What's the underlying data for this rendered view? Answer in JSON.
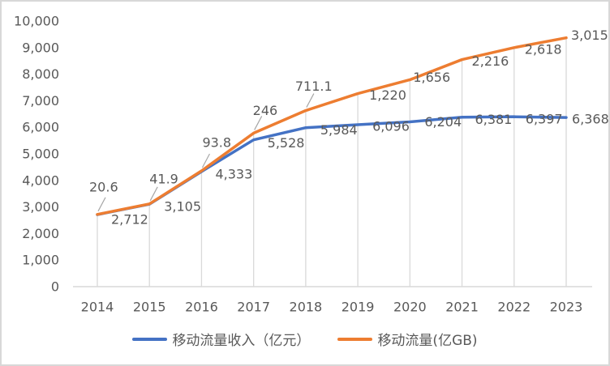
{
  "chart_data": {
    "type": "line",
    "title": "",
    "categories": [
      "2014",
      "2015",
      "2016",
      "2017",
      "2018",
      "2019",
      "2020",
      "2021",
      "2022",
      "2023"
    ],
    "series": [
      {
        "name": "移动流量收入（亿元）",
        "color": "#4472C4",
        "axis": "primary",
        "values": [
          2712,
          3105,
          4333,
          5528,
          5984,
          6096,
          6204,
          6381,
          6397,
          6368
        ],
        "data_labels": [
          "2,712",
          "3,105",
          "4,333",
          "5,528",
          "5,984",
          "6,096",
          "6,204",
          "6,381",
          "6,397",
          "6,368"
        ],
        "label_offsets": [
          [
            17,
            6
          ],
          [
            18,
            3
          ],
          [
            17,
            3
          ],
          [
            17,
            4
          ],
          [
            18,
            3
          ],
          [
            18,
            2
          ],
          [
            18,
            0
          ],
          [
            16,
            3
          ],
          [
            14,
            3
          ],
          [
            7,
            2
          ]
        ]
      },
      {
        "name": "移动流量(亿GB)",
        "color": "#ED7D31",
        "axis": "secondary_hidden",
        "values": [
          20.6,
          41.9,
          93.8,
          246,
          711.1,
          1220,
          1656,
          2216,
          2618,
          3015
        ],
        "data_labels": [
          "20.6",
          "41.9",
          "93.8",
          "246",
          "711.1",
          "1,220",
          "1,656",
          "2,216",
          "2,618",
          "3,015"
        ],
        "plot_values_primary_equiv": [
          2720,
          3115,
          4360,
          5780,
          6630,
          7270,
          7790,
          8550,
          9000,
          9370
        ],
        "label_offsets": [
          [
            -10,
            -34
          ],
          [
            0,
            -31
          ],
          [
            1,
            -35
          ],
          [
            -1,
            -28
          ],
          [
            -13,
            -30
          ],
          [
            14,
            2
          ],
          [
            4,
            -3
          ],
          [
            12,
            2
          ],
          [
            13,
            2
          ],
          [
            6,
            -3
          ]
        ],
        "leader_line_indices": [
          0,
          1,
          2,
          3,
          4
        ]
      }
    ],
    "y_axis": {
      "min": 0,
      "max": 10000,
      "step": 1000,
      "tick_labels": [
        "0",
        "1,000",
        "2,000",
        "3,000",
        "4,000",
        "5,000",
        "6,000",
        "7,000",
        "8,000",
        "9,000",
        "10,000"
      ]
    },
    "x_axis": {
      "tick_labels": [
        "2014",
        "2015",
        "2016",
        "2017",
        "2018",
        "2019",
        "2020",
        "2021",
        "2022",
        "2023"
      ]
    },
    "legend": {
      "position": "bottom"
    },
    "grid": {
      "horizontal_gridlines": false,
      "vertical_drop_lines": true
    },
    "colors": {
      "axis_line": "#D9D9D9",
      "drop_line": "#D9D9D9",
      "leader_line": "#A6A6A6",
      "text": "#595959"
    }
  }
}
